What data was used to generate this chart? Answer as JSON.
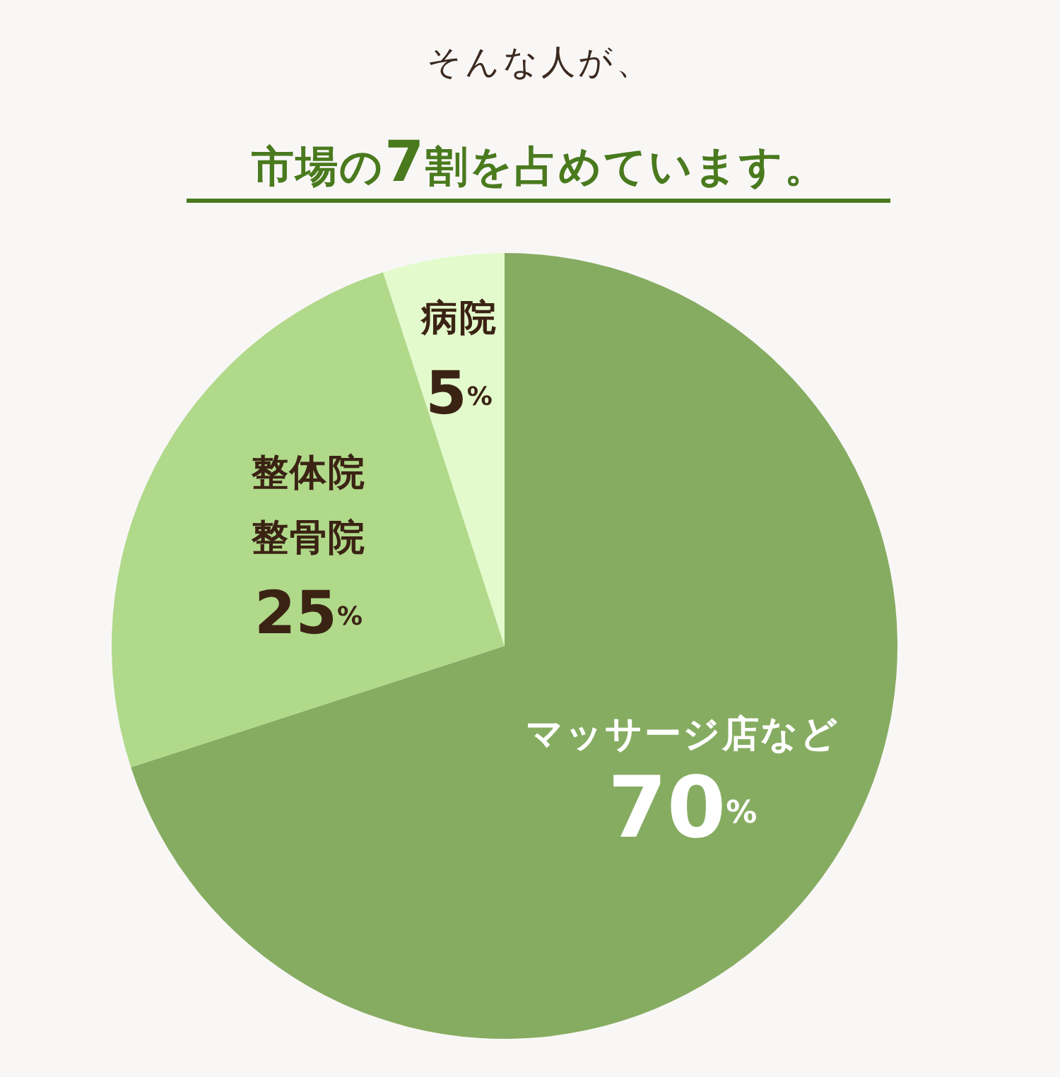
{
  "chart_data": {
    "type": "pie",
    "title": "そんな人が、",
    "subtitle": "市場の7割を占めています。",
    "categories": [
      "マッサージ店など",
      "整体院整骨院",
      "病院"
    ],
    "values": [
      70,
      25,
      5
    ],
    "colors": [
      "#86ac61",
      "#b0d98a",
      "#e3fbcc"
    ],
    "value_labels": [
      "70%",
      "25%",
      "5%"
    ]
  }
}
